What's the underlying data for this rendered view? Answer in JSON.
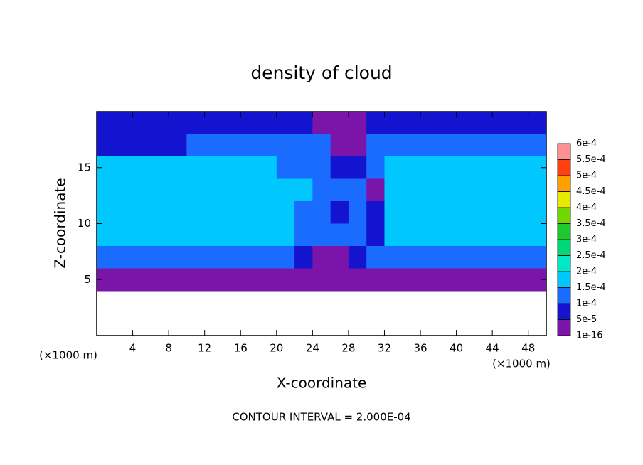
{
  "chart_data": {
    "type": "contour",
    "title": "density of cloud",
    "x_label": "X-coordinate",
    "y_label": "Z-coordinate",
    "x_unit": "(×1000 m)",
    "y_unit": "(×1000 m)",
    "footer": "CONTOUR INTERVAL = 2.000E-04",
    "xlim": [
      0,
      50
    ],
    "ylim": [
      0,
      20
    ],
    "xticks": [
      4,
      8,
      12,
      16,
      20,
      24,
      28,
      32,
      36,
      40,
      44,
      48
    ],
    "yticks": [
      5,
      10,
      15
    ],
    "field": {
      "x": [
        1,
        3,
        5,
        7,
        9,
        11,
        13,
        15,
        17,
        19,
        21,
        23,
        25,
        27,
        29,
        31,
        33,
        35,
        37,
        39,
        41,
        43,
        45,
        47,
        49
      ],
      "y": [
        19,
        17,
        15,
        13,
        11,
        9,
        7,
        5,
        3,
        1
      ],
      "values": [
        [
          7e-05,
          7e-05,
          7e-05,
          7e-05,
          7e-05,
          7e-05,
          7e-05,
          7e-05,
          7e-05,
          7e-05,
          7e-05,
          5e-05,
          1e-16,
          1e-16,
          3e-05,
          5e-05,
          7e-05,
          7e-05,
          7e-05,
          7e-05,
          7e-05,
          7e-05,
          7e-05,
          7e-05,
          7e-05
        ],
        [
          8e-05,
          8e-05,
          8e-05,
          8e-05,
          8e-05,
          0.00012,
          0.00012,
          0.00012,
          0.00012,
          0.00012,
          0.00012,
          0.00012,
          0.0001,
          4e-05,
          3e-05,
          0.00011,
          0.00013,
          0.00013,
          0.00013,
          0.00013,
          0.00013,
          0.00013,
          0.00013,
          0.00013,
          0.00013
        ],
        [
          0.00016,
          0.00016,
          0.00016,
          0.00016,
          0.00016,
          0.00016,
          0.00016,
          0.00016,
          0.00016,
          0.00016,
          0.00013,
          0.00011,
          0.0001,
          9e-05,
          5e-05,
          0.00012,
          0.00017,
          0.00017,
          0.00017,
          0.00017,
          0.00017,
          0.00017,
          0.00017,
          0.00017,
          0.00017
        ],
        [
          0.00018,
          0.00018,
          0.00018,
          0.00018,
          0.00018,
          0.00018,
          0.00018,
          0.00018,
          0.00018,
          0.00018,
          0.00018,
          0.00015,
          0.00013,
          0.00012,
          0.0001,
          3e-05,
          0.00018,
          0.00018,
          0.00018,
          0.00018,
          0.00018,
          0.00018,
          0.00018,
          0.00018,
          0.00018
        ],
        [
          0.00018,
          0.00018,
          0.00018,
          0.00018,
          0.00018,
          0.00018,
          0.00018,
          0.00018,
          0.00018,
          0.00018,
          0.00018,
          0.00014,
          0.00012,
          5e-05,
          0.00012,
          8e-05,
          0.00018,
          0.00018,
          0.00018,
          0.00018,
          0.00018,
          0.00018,
          0.00018,
          0.00018,
          0.00018
        ],
        [
          0.00016,
          0.00016,
          0.00016,
          0.00016,
          0.00016,
          0.00016,
          0.00016,
          0.00016,
          0.00016,
          0.00016,
          0.00016,
          0.00013,
          0.0001,
          0.00011,
          0.0001,
          9e-05,
          0.00016,
          0.00016,
          0.00016,
          0.00016,
          0.00016,
          0.00016,
          0.00016,
          0.00016,
          0.00016
        ],
        [
          0.00012,
          0.00012,
          0.00012,
          0.00012,
          0.00012,
          0.00012,
          0.00012,
          0.00012,
          0.00012,
          0.00012,
          0.00012,
          8e-05,
          3e-05,
          2e-05,
          6e-05,
          0.0001,
          0.00012,
          0.00012,
          0.00012,
          0.00012,
          0.00012,
          0.00012,
          0.00012,
          0.00012,
          0.00012
        ],
        [
          3e-05,
          3e-05,
          3e-05,
          3e-05,
          3e-05,
          3e-05,
          3e-05,
          3e-05,
          3e-05,
          3e-05,
          3e-05,
          3e-05,
          3e-05,
          3e-05,
          3e-05,
          3e-05,
          3e-05,
          3e-05,
          3e-05,
          3e-05,
          3e-05,
          3e-05,
          3e-05,
          3e-05,
          3e-05
        ],
        [
          null,
          null,
          null,
          null,
          null,
          null,
          null,
          null,
          null,
          null,
          null,
          null,
          null,
          null,
          null,
          null,
          null,
          null,
          null,
          null,
          null,
          null,
          null,
          null,
          null
        ],
        [
          null,
          null,
          null,
          null,
          null,
          null,
          null,
          null,
          null,
          null,
          null,
          null,
          null,
          null,
          null,
          null,
          null,
          null,
          null,
          null,
          null,
          null,
          null,
          null,
          null
        ]
      ]
    },
    "colorbar": {
      "levels": [
        1e-16,
        {
          "value": 5e-05,
          "label": "5e-5"
        },
        {
          "value": 0.0001,
          "label": "1e-4"
        },
        {
          "value": 0.00015,
          "label": "1.5e-4"
        },
        {
          "value": 0.0002,
          "label": "2e-4"
        },
        {
          "value": 0.00025,
          "label": "2.5e-4"
        },
        {
          "value": 0.0003,
          "label": "3e-4"
        },
        {
          "value": 0.00035,
          "label": "3.5e-4"
        },
        {
          "value": 0.0004,
          "label": "4e-4"
        },
        {
          "value": 0.00045,
          "label": "4.5e-4"
        },
        {
          "value": 0.0005,
          "label": "5e-4"
        },
        {
          "value": 0.00055,
          "label": "5.5e-4"
        },
        {
          "value": 0.0006,
          "label": "6e-4"
        }
      ],
      "colors": [
        "#7b14a8",
        "#1414d0",
        "#1a6cff",
        "#00c8ff",
        "#00e8c8",
        "#00d878",
        "#20c830",
        "#70d800",
        "#e8e800",
        "#ffa000",
        "#ff4010",
        "#ff9090"
      ]
    }
  }
}
